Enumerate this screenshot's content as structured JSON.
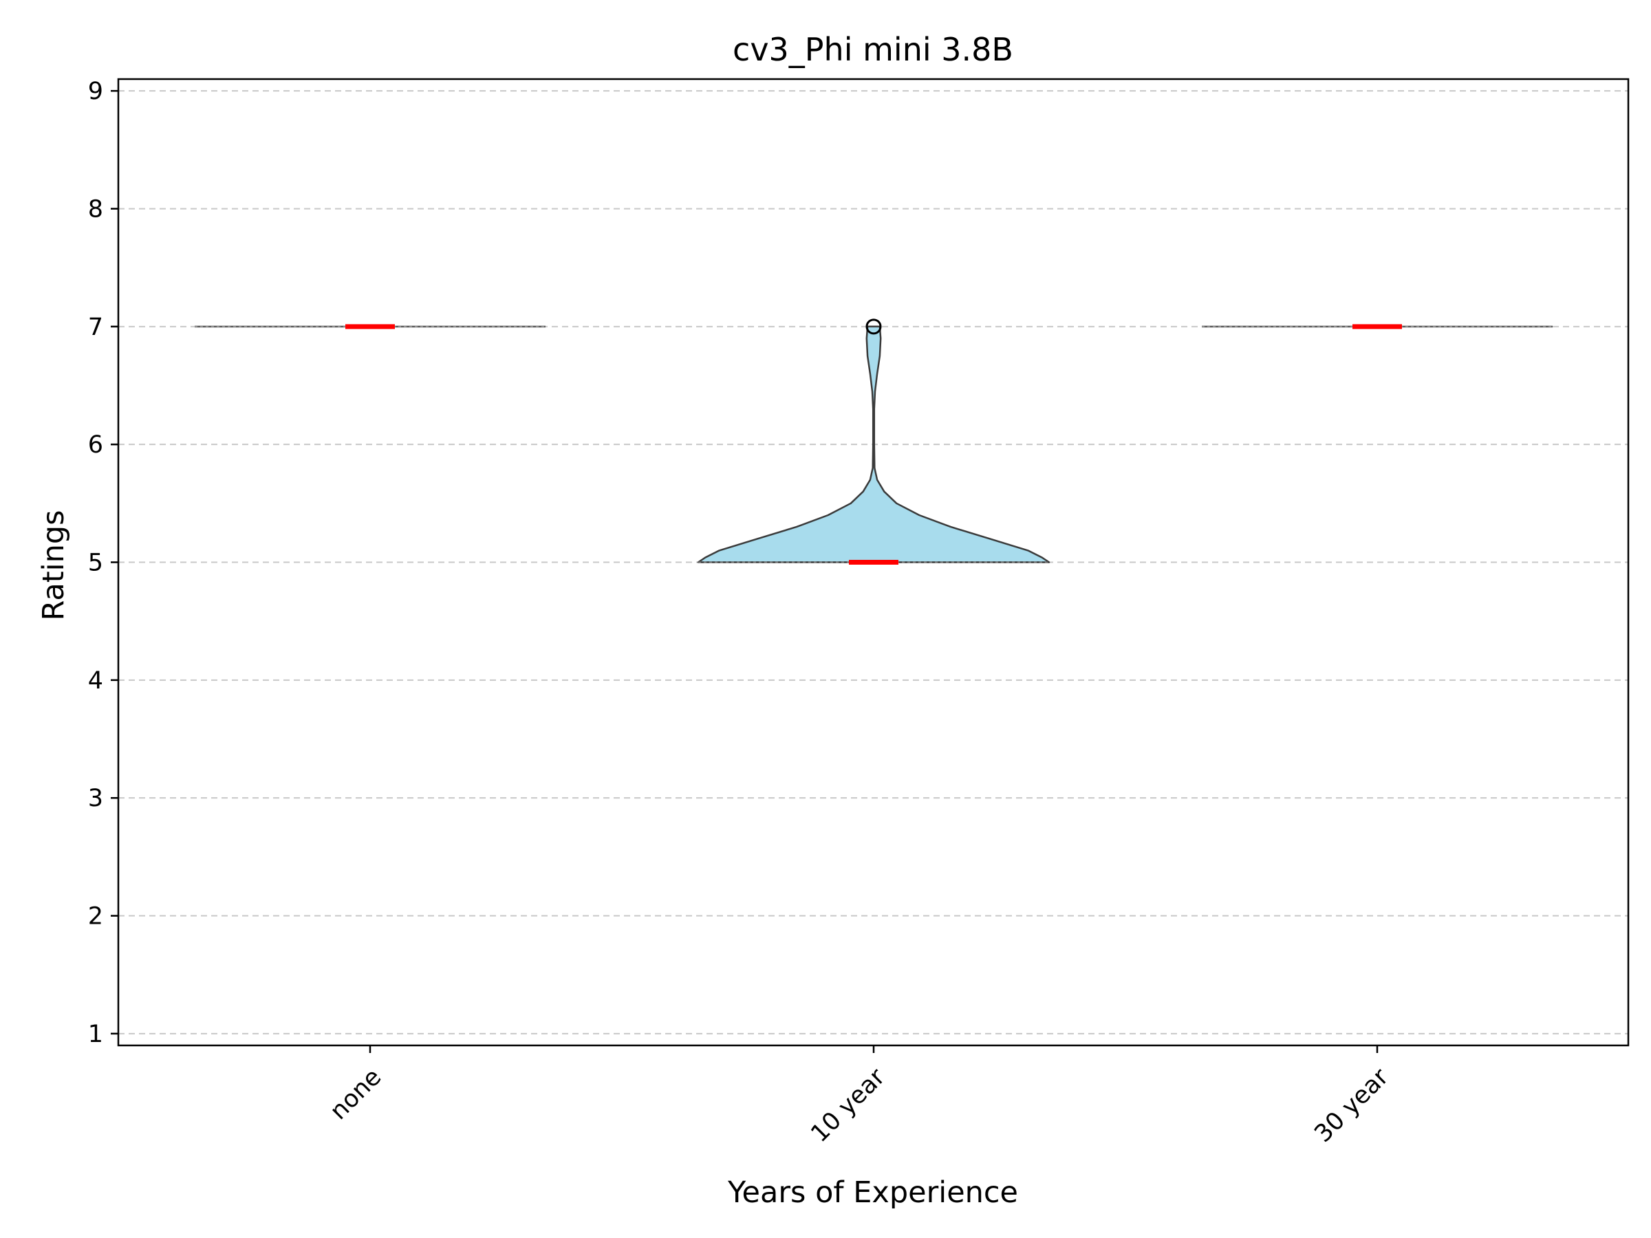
{
  "chart_data": {
    "type": "violin",
    "title": "cv3_Phi mini 3.8B",
    "xlabel": "Years of Experience",
    "ylabel": "Ratings",
    "categories": [
      "none",
      "10 year",
      "30 year"
    ],
    "ylim": [
      0.9,
      9.1
    ],
    "yticks": [
      1,
      2,
      3,
      4,
      5,
      6,
      7,
      8,
      9
    ],
    "grid": "y-dashed",
    "violins": [
      {
        "category": "none",
        "min": 7,
        "max": 7,
        "median": 7,
        "q1": 7,
        "q3": 7,
        "outliers": []
      },
      {
        "category": "10 year",
        "min": 5,
        "max": 7,
        "median": 5,
        "q1": 5,
        "q3": 5,
        "outliers": [
          7
        ]
      },
      {
        "category": "30 year",
        "min": 7,
        "max": 7,
        "median": 7,
        "q1": 7,
        "q3": 7,
        "outliers": []
      }
    ],
    "colors": {
      "violin_fill": "#a8dced",
      "violin_edge": "#3a3a3a",
      "median": "#ff0000",
      "grid": "#c8c8c8",
      "axis": "#000000"
    }
  }
}
